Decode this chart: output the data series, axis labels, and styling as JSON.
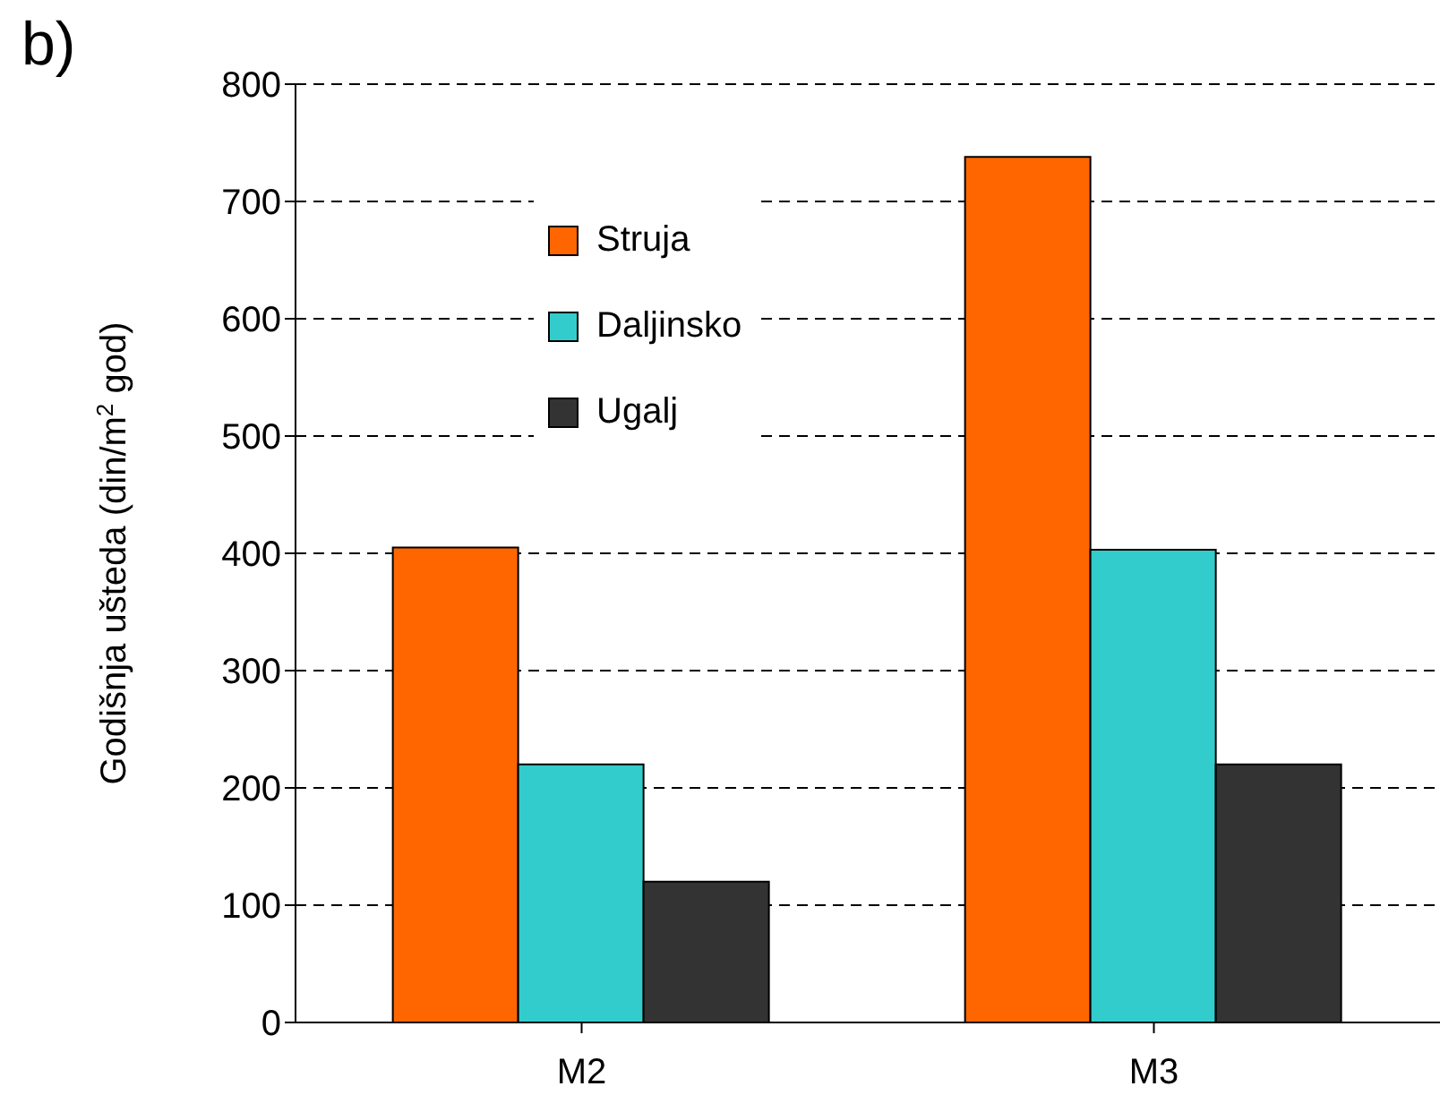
{
  "chart_data": {
    "type": "bar",
    "ylabel": "Godišnja ušteda (din/m$^{2}$ god)",
    "annotations": [
      "b)"
    ],
    "categories": [
      "M2",
      "M3"
    ],
    "series": [
      {
        "name": "Struja",
        "color": "#ff6600",
        "values": [
          405,
          738
        ]
      },
      {
        "name": "Daljinsko",
        "color": "#33cccc",
        "values": [
          220,
          403
        ]
      },
      {
        "name": "Ugalj",
        "color": "#333333",
        "values": [
          120,
          220
        ]
      }
    ],
    "ylim": [
      0,
      800
    ],
    "yticks": [
      0,
      100,
      200,
      300,
      400,
      500,
      600,
      700,
      800
    ],
    "grid": "y",
    "legend": "top left"
  }
}
